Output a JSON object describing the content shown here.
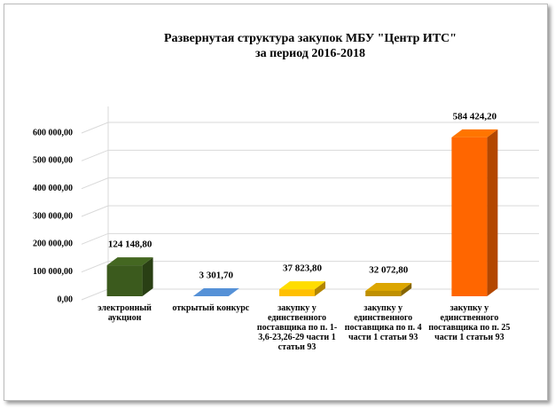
{
  "chart_data": {
    "type": "bar3d",
    "title": "Развернутая структура закупок МБУ \"Центр ИТС\"",
    "subtitle": "за период 2016-2018",
    "categories": [
      "электронный аукцион",
      "открытый конкурс",
      "закупку у единственного поставщика по п. 1-3,6-23,26-29 части 1 статьи 93",
      "закупку у единственного поставщика по п. 4 части 1 статьи 93",
      "закупку у единственного поставщика по п. 25 части 1 статьи 93"
    ],
    "values": [
      124148.8,
      3301.7,
      37823.8,
      32072.8,
      584424.2
    ],
    "value_labels": [
      "124 148,80",
      "3 301,70",
      "37 823,80",
      "32 072,80",
      "584 424,20"
    ],
    "colors": [
      "#3b5a1d",
      "#4a7ebb",
      "#ffc000",
      "#bf9000",
      "#ff6600"
    ],
    "ylim": [
      0,
      600000
    ],
    "yticks": [
      {
        "value": 0,
        "label": "0,00"
      },
      {
        "value": 100000,
        "label": "100 000,00"
      },
      {
        "value": 200000,
        "label": "200 000,00"
      },
      {
        "value": 300000,
        "label": "300 000,00"
      },
      {
        "value": 400000,
        "label": "400 000,00"
      },
      {
        "value": 500000,
        "label": "500 000,00"
      },
      {
        "value": 600000,
        "label": "600 000,00"
      }
    ],
    "grid": true
  }
}
